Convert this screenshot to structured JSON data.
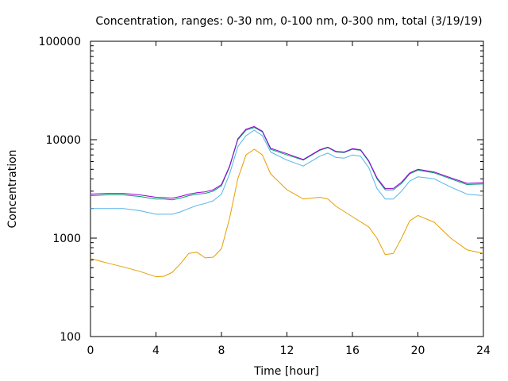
{
  "chart_data": {
    "type": "line",
    "title": "Concentration, ranges: 0-30 nm, 0-100 nm, 0-300 nm, total (3/19/19)",
    "xlabel": "Time [hour]",
    "ylabel": "Concentration",
    "xlim": [
      0,
      24
    ],
    "ylim": [
      100,
      100000
    ],
    "yscale": "log",
    "grid": false,
    "legend": "none",
    "xticks": [
      0,
      4,
      8,
      12,
      16,
      20,
      24
    ],
    "xtick_labels": [
      "0",
      "4",
      "8",
      "12",
      "16",
      "20",
      "24"
    ],
    "yticks": [
      100,
      1000,
      10000,
      100000
    ],
    "ytick_labels": [
      "100",
      "1000",
      "10000",
      "100000"
    ],
    "series": [
      {
        "color": "#e69f00",
        "x": [
          0,
          1,
          2,
          3,
          4,
          4.5,
          5,
          5.5,
          6,
          6.5,
          7,
          7.5,
          8,
          8.5,
          9,
          9.5,
          10,
          10.5,
          11,
          12,
          13,
          14,
          14.5,
          15,
          16,
          17,
          17.5,
          18,
          18.5,
          19,
          19.5,
          20,
          21,
          22,
          23,
          24
        ],
        "y": [
          620,
          560,
          510,
          460,
          405,
          410,
          450,
          550,
          700,
          720,
          630,
          640,
          780,
          1600,
          4000,
          7000,
          8000,
          7000,
          4500,
          3100,
          2500,
          2600,
          2500,
          2100,
          1650,
          1300,
          1000,
          680,
          700,
          1000,
          1500,
          1700,
          1450,
          1000,
          760,
          700
        ]
      },
      {
        "color": "#56b4e9",
        "x": [
          0,
          1,
          2,
          3,
          4,
          4.5,
          5,
          5.5,
          6,
          6.5,
          7,
          7.5,
          8,
          8.5,
          9,
          9.5,
          10,
          10.5,
          11,
          12,
          13,
          14,
          14.5,
          15,
          15.5,
          16,
          16.5,
          17,
          17.5,
          18,
          18.5,
          19,
          19.5,
          20,
          21,
          22,
          23,
          24
        ],
        "y": [
          2000,
          2000,
          2000,
          1900,
          1750,
          1750,
          1750,
          1850,
          2000,
          2150,
          2250,
          2400,
          2800,
          4500,
          8500,
          11000,
          12500,
          11000,
          7500,
          6200,
          5400,
          6800,
          7300,
          6600,
          6500,
          7000,
          6800,
          5200,
          3200,
          2500,
          2500,
          3000,
          3800,
          4200,
          4000,
          3300,
          2800,
          2700
        ]
      },
      {
        "color": "#009e73",
        "x": [
          0,
          1,
          2,
          3,
          4,
          4.5,
          5,
          5.5,
          6,
          6.5,
          7,
          7.5,
          8,
          8.5,
          9,
          9.5,
          10,
          10.5,
          11,
          12,
          13,
          14,
          14.5,
          15,
          15.5,
          16,
          16.5,
          17,
          17.5,
          18,
          18.5,
          19,
          19.5,
          20,
          21,
          22,
          23,
          24
        ],
        "y": [
          2700,
          2750,
          2750,
          2650,
          2500,
          2500,
          2450,
          2550,
          2700,
          2800,
          2850,
          3000,
          3400,
          5300,
          10000,
          12500,
          13300,
          12000,
          8000,
          7000,
          6200,
          7800,
          8300,
          7500,
          7400,
          8000,
          7800,
          6000,
          4000,
          3100,
          3100,
          3600,
          4500,
          4900,
          4600,
          4000,
          3500,
          3550
        ]
      },
      {
        "color": "#9400d3",
        "x": [
          0,
          1,
          2,
          3,
          4,
          4.5,
          5,
          5.5,
          6,
          6.5,
          7,
          7.5,
          8,
          8.5,
          9,
          9.5,
          10,
          10.5,
          11,
          12,
          13,
          14,
          14.5,
          15,
          15.5,
          16,
          16.5,
          17,
          17.5,
          18,
          18.5,
          19,
          19.5,
          20,
          21,
          22,
          23,
          24
        ],
        "y": [
          2800,
          2850,
          2850,
          2750,
          2600,
          2580,
          2550,
          2650,
          2800,
          2900,
          2950,
          3100,
          3500,
          5400,
          10200,
          12800,
          13600,
          12200,
          8200,
          7200,
          6300,
          7900,
          8400,
          7600,
          7500,
          8100,
          7900,
          6100,
          4100,
          3200,
          3200,
          3700,
          4600,
          5000,
          4700,
          4100,
          3600,
          3650
        ]
      }
    ]
  }
}
